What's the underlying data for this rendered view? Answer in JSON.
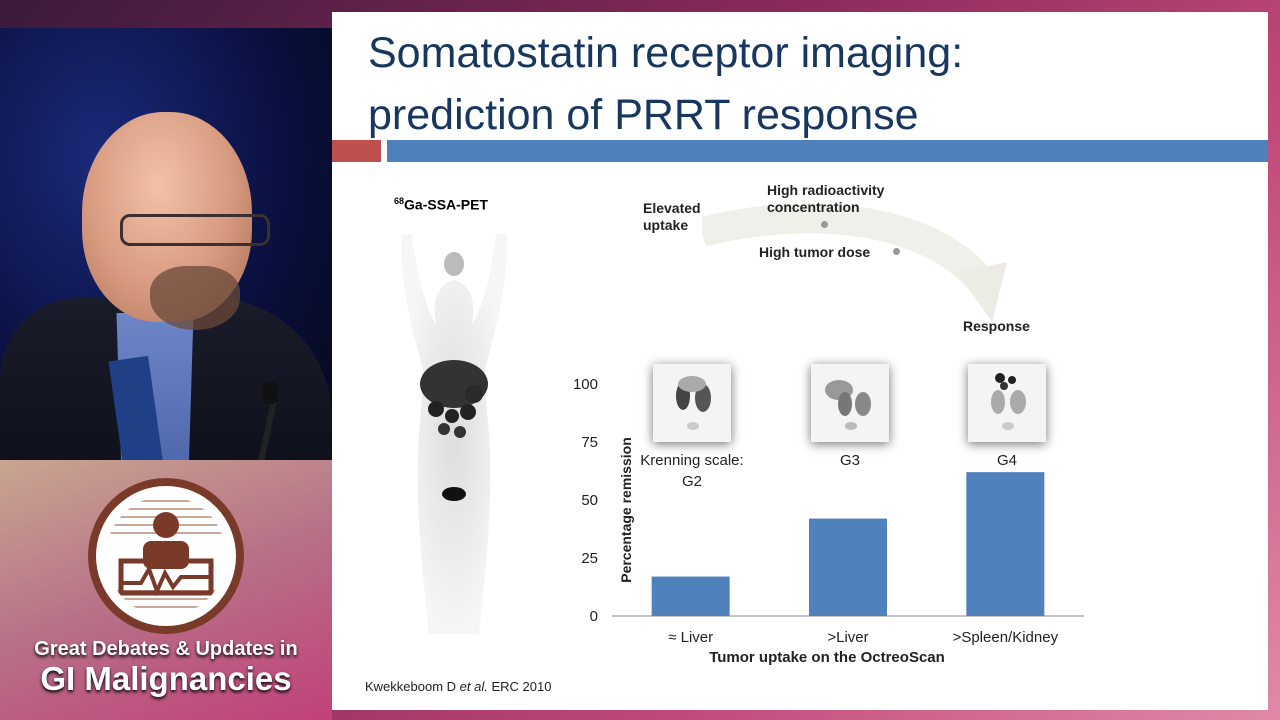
{
  "branding": {
    "line1": "Great Debates & Updates in",
    "line2": "GI Malignancies"
  },
  "slide": {
    "title_line1": "Somatostatin receptor imaging:",
    "title_line2": "prediction of PRRT response",
    "pet_label_sup": "68",
    "pet_label": "Ga-SSA-PET",
    "flow": {
      "elevated_uptake_1": "Elevated",
      "elevated_uptake_2": "uptake",
      "high_radio_1": "High radioactivity",
      "high_radio_2": "concentration",
      "high_tumor_dose": "High tumor dose",
      "response": "Response"
    },
    "citation_a": "Kwekkeboom D ",
    "citation_b": "et al.",
    "citation_c": " ERC 2010"
  },
  "chart_data": {
    "type": "bar",
    "categories": [
      "≈ Liver",
      ">Liver",
      ">Spleen/Kidney"
    ],
    "values": [
      17,
      42,
      62
    ],
    "ylim": [
      0,
      100
    ],
    "yticks": [
      0,
      25,
      50,
      75,
      100
    ],
    "ylabel": "Percentage remission",
    "xlabel": "Tumor uptake on the OctreoScan",
    "bar_color": "#4f81bd",
    "image_labels": [
      "Krenning scale:",
      "G2",
      "G3",
      "G4"
    ]
  }
}
